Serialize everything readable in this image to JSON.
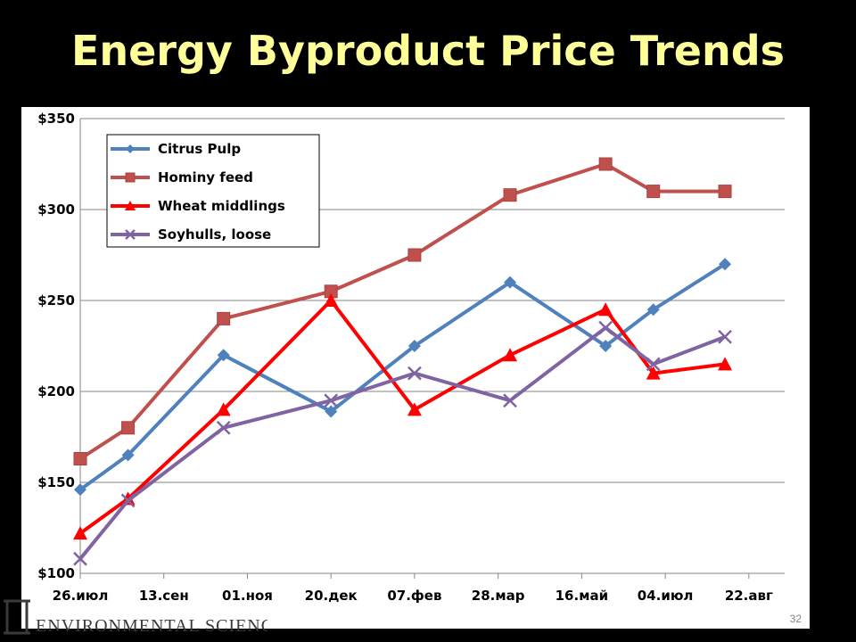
{
  "slide": {
    "title": "Energy Byproduct Price Trends",
    "page_number": "32",
    "footer_logo_text": "ENVIRONMENTAL SCIENCES"
  },
  "chart_data": {
    "type": "line",
    "title": "",
    "xlabel": "",
    "ylabel": "",
    "categories": [
      "26.июл",
      "13.сен",
      "01.ноя",
      "20.дек",
      "07.фев",
      "28.мар",
      "16.май",
      "04.июл",
      "22.авг"
    ],
    "x_dates": [
      "2010-07-26",
      "2010-09-13",
      "2010-11-01",
      "2010-12-20",
      "2011-02-07",
      "2011-03-28",
      "2011-05-16",
      "2011-07-04",
      "2011-08-22"
    ],
    "y_tick_labels": [
      "$100",
      "$150",
      "$200",
      "$250",
      "$300",
      "$350"
    ],
    "ylim": [
      100,
      350
    ],
    "grid": true,
    "legend_position": "top-left",
    "series": [
      {
        "name": "Citrus Pulp",
        "color": "#4f81bd",
        "marker": "diamond",
        "points": [
          {
            "x": "2010-07-26",
            "y": 146
          },
          {
            "x": "2010-08-23",
            "y": 165
          },
          {
            "x": "2010-10-18",
            "y": 220
          },
          {
            "x": "2010-12-20",
            "y": 189
          },
          {
            "x": "2011-02-07",
            "y": 225
          },
          {
            "x": "2011-04-04",
            "y": 260
          },
          {
            "x": "2011-05-30",
            "y": 225
          },
          {
            "x": "2011-06-27",
            "y": 245
          },
          {
            "x": "2011-08-08",
            "y": 270
          }
        ]
      },
      {
        "name": "Hominy feed",
        "color": "#c0504d",
        "marker": "square",
        "points": [
          {
            "x": "2010-07-26",
            "y": 163
          },
          {
            "x": "2010-08-23",
            "y": 180
          },
          {
            "x": "2010-10-18",
            "y": 240
          },
          {
            "x": "2010-12-20",
            "y": 255
          },
          {
            "x": "2011-02-07",
            "y": 275
          },
          {
            "x": "2011-04-04",
            "y": 308
          },
          {
            "x": "2011-05-30",
            "y": 325
          },
          {
            "x": "2011-06-27",
            "y": 310
          },
          {
            "x": "2011-08-08",
            "y": 310
          }
        ]
      },
      {
        "name": "Wheat middlings",
        "color": "#ff0000",
        "marker": "triangle",
        "points": [
          {
            "x": "2010-07-26",
            "y": 122
          },
          {
            "x": "2010-08-23",
            "y": 141
          },
          {
            "x": "2010-10-18",
            "y": 190
          },
          {
            "x": "2010-12-20",
            "y": 250
          },
          {
            "x": "2011-02-07",
            "y": 190
          },
          {
            "x": "2011-04-04",
            "y": 220
          },
          {
            "x": "2011-05-30",
            "y": 245
          },
          {
            "x": "2011-06-27",
            "y": 210
          },
          {
            "x": "2011-08-08",
            "y": 215
          }
        ]
      },
      {
        "name": "Soyhulls, loose",
        "color": "#8064a2",
        "marker": "x",
        "points": [
          {
            "x": "2010-07-26",
            "y": 108
          },
          {
            "x": "2010-08-23",
            "y": 140
          },
          {
            "x": "2010-10-18",
            "y": 180
          },
          {
            "x": "2010-12-20",
            "y": 195
          },
          {
            "x": "2011-02-07",
            "y": 210
          },
          {
            "x": "2011-04-04",
            "y": 195
          },
          {
            "x": "2011-05-30",
            "y": 235
          },
          {
            "x": "2011-06-27",
            "y": 215
          },
          {
            "x": "2011-08-08",
            "y": 230
          }
        ]
      }
    ]
  }
}
